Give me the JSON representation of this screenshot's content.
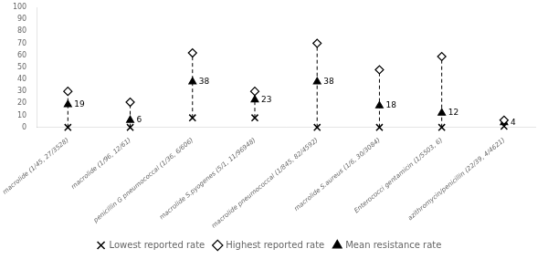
{
  "chart_data": {
    "type": "range",
    "categories": [
      "macrolide (1/45, 27/3528)",
      "macrolide (1/96, 12/61)",
      "penicillin G pneumococcal (1/36, 6/606)",
      "macrolide S.pyogenes (5/1, 11/96948)",
      "macrolide pneumococcal (1/845, 82/4592)",
      "macrolide S.aureus (1/6, 30/3084)",
      "Enterococci gentamicin (1/5503, 6)",
      "azithromycin/penicillin (22/39, 4/4621)"
    ],
    "series": [
      {
        "name": "Lowest reported rate",
        "color": "#000000",
        "marker": "x",
        "values": [
          0,
          0,
          8,
          8,
          0,
          0,
          0,
          1
        ]
      },
      {
        "name": "Highest reported rate",
        "color": "#000000",
        "marker": "diamond",
        "values": [
          30,
          21,
          62,
          30,
          70,
          48,
          59,
          6
        ]
      },
      {
        "name": "Mean resistance rate",
        "color": "#000000",
        "marker": "triangle",
        "values": [
          19,
          6,
          38,
          23,
          38,
          18,
          12,
          4
        ],
        "data_labels": true
      }
    ],
    "line_style": "dashed",
    "ylim": [
      0,
      100
    ],
    "yticks": [
      0,
      10,
      20,
      30,
      40,
      50,
      60,
      70,
      80,
      90,
      100
    ],
    "grid": false,
    "legend": "bottom"
  }
}
